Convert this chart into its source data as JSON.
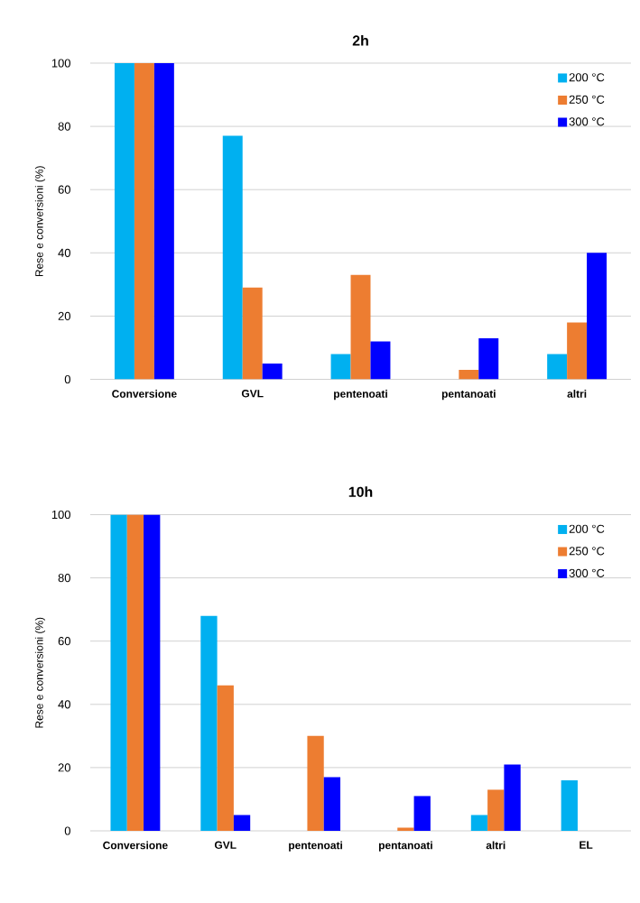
{
  "chart_data": [
    {
      "type": "bar",
      "title": "2h",
      "ylabel": "Rese e conversioni  (%)",
      "categories": [
        "Conversione",
        "GVL",
        "pentenoati",
        "pentanoati",
        "altri"
      ],
      "series": [
        {
          "name": "200 °C",
          "color": "#00b0f0",
          "values": [
            100,
            77,
            8,
            0,
            8
          ]
        },
        {
          "name": "250 °C",
          "color": "#ed7d31",
          "values": [
            100,
            29,
            33,
            3,
            18
          ]
        },
        {
          "name": "300 °C",
          "color": "#0000ff",
          "values": [
            100,
            5,
            12,
            13,
            40
          ]
        }
      ],
      "ylim": [
        0,
        100
      ],
      "yticks": [
        0,
        20,
        40,
        60,
        80,
        100
      ],
      "grid": "y",
      "legend": "top right"
    },
    {
      "type": "bar",
      "title": "10h",
      "ylabel": "Rese e conversioni  (%)",
      "categories": [
        "Conversione",
        "GVL",
        "pentenoati",
        "pentanoati",
        "altri",
        "EL"
      ],
      "series": [
        {
          "name": "200 °C",
          "color": "#00b0f0",
          "values": [
            100,
            68,
            0,
            0,
            5,
            16
          ]
        },
        {
          "name": "250 °C",
          "color": "#ed7d31",
          "values": [
            100,
            46,
            30,
            1,
            13,
            0
          ]
        },
        {
          "name": "300 °C",
          "color": "#0000ff",
          "values": [
            100,
            5,
            17,
            11,
            21,
            0
          ]
        }
      ],
      "ylim": [
        0,
        100
      ],
      "yticks": [
        0,
        20,
        40,
        60,
        80,
        100
      ],
      "grid": "y",
      "legend": "top right"
    }
  ]
}
